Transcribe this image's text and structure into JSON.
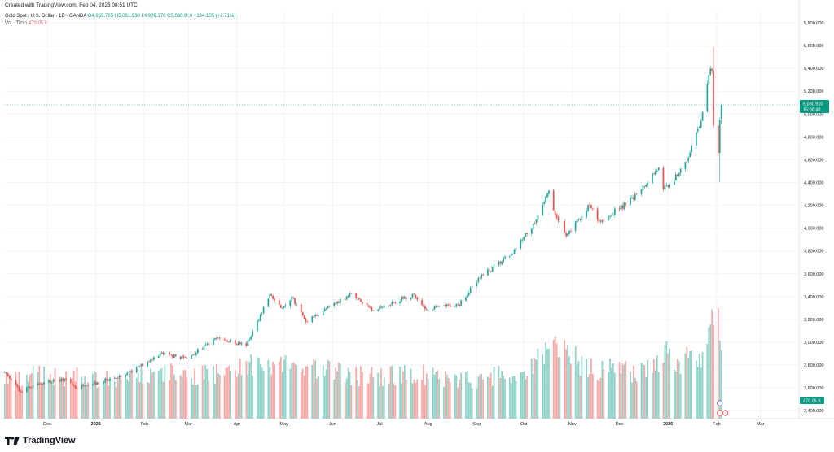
{
  "header": {
    "created_text": "Created with TradingView.com, Feb 04, 2026 08:51 UTC"
  },
  "legend": {
    "symbol": "Gold Spot / U.S. Dollar · 1D · OANDA",
    "open": "O4,959.765",
    "high": "H5,091.930",
    "low": "L4,909.170",
    "close": "C5,080.910",
    "change": "+134.105 (+2.71%)",
    "vol_label": "Vol · Ticks",
    "vol_value": "470.05 K"
  },
  "footer": {
    "brand": "TradingView"
  },
  "colors": {
    "up": "#26a69a",
    "down": "#ef5350",
    "vol_up": "#8fd2c8",
    "vol_down": "#f7a9a7",
    "grid": "#f0f3fa",
    "axis_text": "#131722",
    "price_tag": "#089981"
  },
  "chart_data": {
    "type": "candlestick",
    "price_axis": {
      "ticks": [
        2400,
        2600,
        2800,
        3000,
        3200,
        3400,
        3600,
        3800,
        4000,
        4200,
        4400,
        4600,
        4800,
        5000,
        5200,
        5400,
        5600,
        5800
      ],
      "tick_labels": [
        "2,400.000",
        "2,600.000",
        "2,800.000",
        "3,000.000",
        "3,200.000",
        "3,400.000",
        "3,600.000",
        "3,800.000",
        "4,000.000",
        "4,200.000",
        "4,400.000",
        "4,600.000",
        "4,800.000",
        "5,000.000",
        "5,200.000",
        "5,400.000",
        "5,600.000",
        "5,800.000"
      ],
      "range": [
        2330,
        5900
      ]
    },
    "time_axis": {
      "labels": [
        "Dec",
        "2025",
        "Feb",
        "Mar",
        "Apr",
        "May",
        "Jun",
        "Jul",
        "Aug",
        "Sep",
        "Oct",
        "Nov",
        "Dec",
        "2026",
        "Feb",
        "Mar"
      ],
      "label_dates": [
        "2024-12-01",
        "2025-01-01",
        "2025-02-01",
        "2025-03-01",
        "2025-04-01",
        "2025-05-01",
        "2025-06-01",
        "2025-07-01",
        "2025-08-01",
        "2025-09-01",
        "2025-10-01",
        "2025-11-01",
        "2025-12-01",
        "2026-01-01",
        "2026-02-01",
        "2026-03-01"
      ],
      "range": [
        "2024-11-04",
        "2026-03-25"
      ]
    },
    "last_price": {
      "value": 5080.91,
      "label": "5,080.910",
      "countdown": "15:08:48"
    },
    "volume_last": "470.05 K",
    "anchors": [
      [
        "2024-11-04",
        2735,
        310
      ],
      [
        "2024-11-14",
        2565,
        290
      ],
      [
        "2024-11-25",
        2640,
        340
      ],
      [
        "2024-12-12",
        2680,
        300
      ],
      [
        "2024-12-19",
        2595,
        330
      ],
      [
        "2025-01-02",
        2650,
        290
      ],
      [
        "2025-01-20",
        2710,
        300
      ],
      [
        "2025-02-11",
        2900,
        350
      ],
      [
        "2025-02-28",
        2860,
        330
      ],
      [
        "2025-03-20",
        3040,
        350
      ],
      [
        "2025-04-07",
        2970,
        420
      ],
      [
        "2025-04-22",
        3420,
        430
      ],
      [
        "2025-04-29",
        3300,
        400
      ],
      [
        "2025-05-06",
        3400,
        380
      ],
      [
        "2025-05-15",
        3180,
        390
      ],
      [
        "2025-06-13",
        3430,
        330
      ],
      [
        "2025-06-27",
        3280,
        320
      ],
      [
        "2025-07-22",
        3420,
        350
      ],
      [
        "2025-07-30",
        3290,
        330
      ],
      [
        "2025-08-20",
        3330,
        280
      ],
      [
        "2025-09-05",
        3590,
        310
      ],
      [
        "2025-09-23",
        3770,
        330
      ],
      [
        "2025-10-08",
        4040,
        400
      ],
      [
        "2025-10-17",
        4330,
        520
      ],
      [
        "2025-10-21",
        4120,
        600
      ],
      [
        "2025-10-28",
        3930,
        480
      ],
      [
        "2025-11-12",
        4200,
        400
      ],
      [
        "2025-11-18",
        4060,
        380
      ],
      [
        "2025-12-05",
        4210,
        350
      ],
      [
        "2025-12-12",
        4300,
        370
      ],
      [
        "2025-12-26",
        4530,
        420
      ],
      [
        "2025-12-29",
        4340,
        520
      ],
      [
        "2026-01-07",
        4460,
        420
      ],
      [
        "2026-01-14",
        4620,
        460
      ],
      [
        "2026-01-22",
        4940,
        500
      ],
      [
        "2026-01-28",
        5400,
        680
      ],
      [
        "2026-01-29",
        5380,
        790
      ],
      [
        "2026-01-30",
        4900,
        760
      ],
      [
        "2026-02-02",
        4660,
        700
      ],
      [
        "2026-02-03",
        4946,
        560
      ],
      [
        "2026-02-04",
        5080.91,
        470.05
      ]
    ]
  }
}
